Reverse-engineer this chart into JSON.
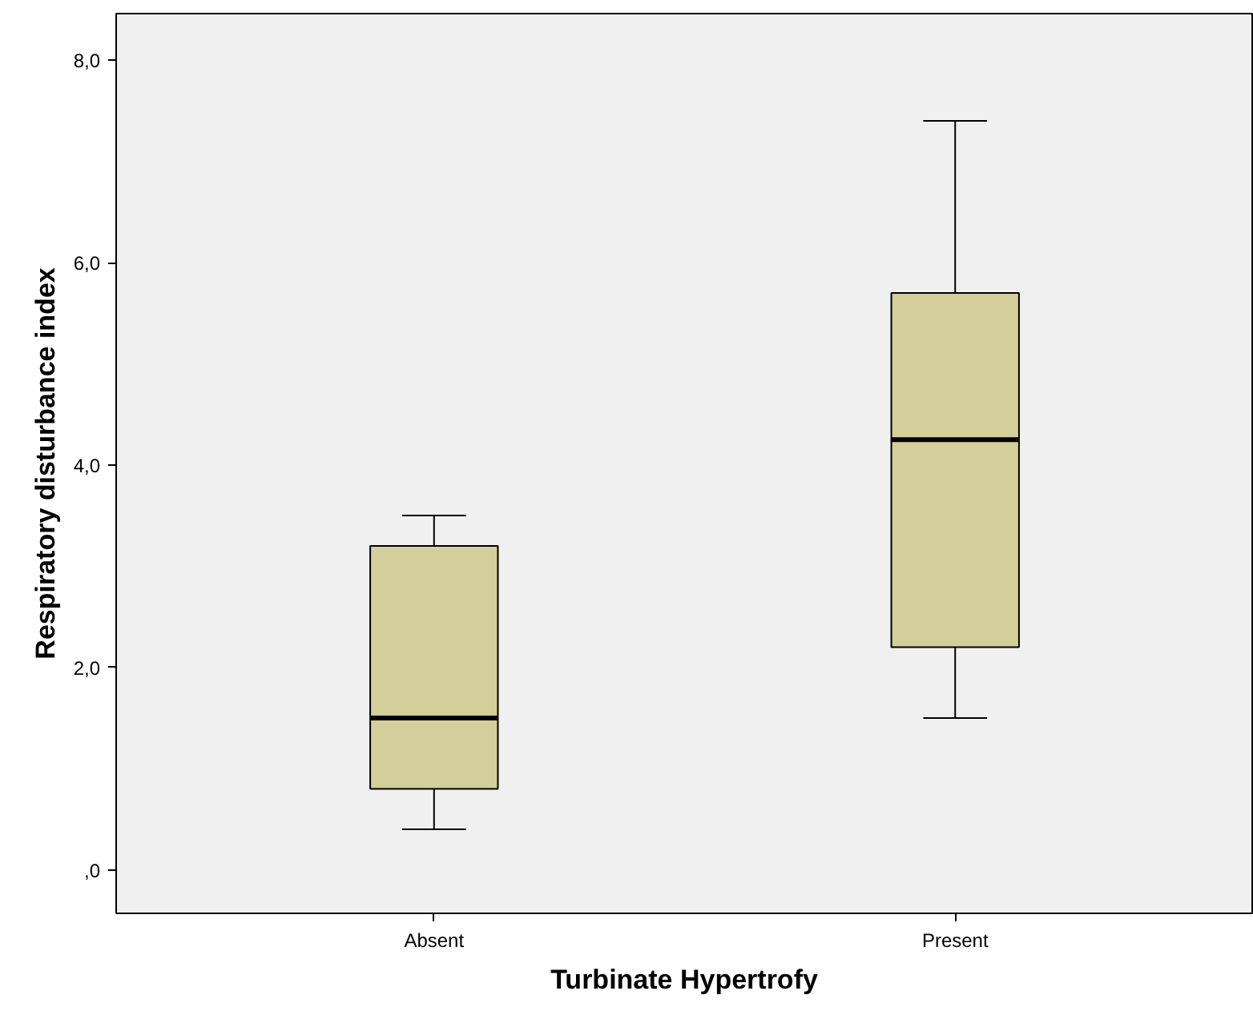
{
  "chart_data": {
    "type": "box",
    "xlabel": "Turbinate Hypertrofy",
    "ylabel": "Respiratory disturbance index",
    "categories": [
      "Absent",
      "Present"
    ],
    "boxes": [
      {
        "low": 0.4,
        "q1": 0.8,
        "median": 1.5,
        "q3": 3.2,
        "high": 3.5
      },
      {
        "low": 1.5,
        "q1": 2.2,
        "median": 4.25,
        "q3": 5.7,
        "high": 7.4
      }
    ],
    "color": "#d3ce9a",
    "ylim": [
      -0.43,
      8.46
    ],
    "yticks": [
      {
        "value": 0,
        "label": ",0"
      },
      {
        "value": 2,
        "label": "2,0"
      },
      {
        "value": 4,
        "label": "4,0"
      },
      {
        "value": 6,
        "label": "6,0"
      },
      {
        "value": 8,
        "label": "8,0"
      }
    ],
    "grid": false
  }
}
